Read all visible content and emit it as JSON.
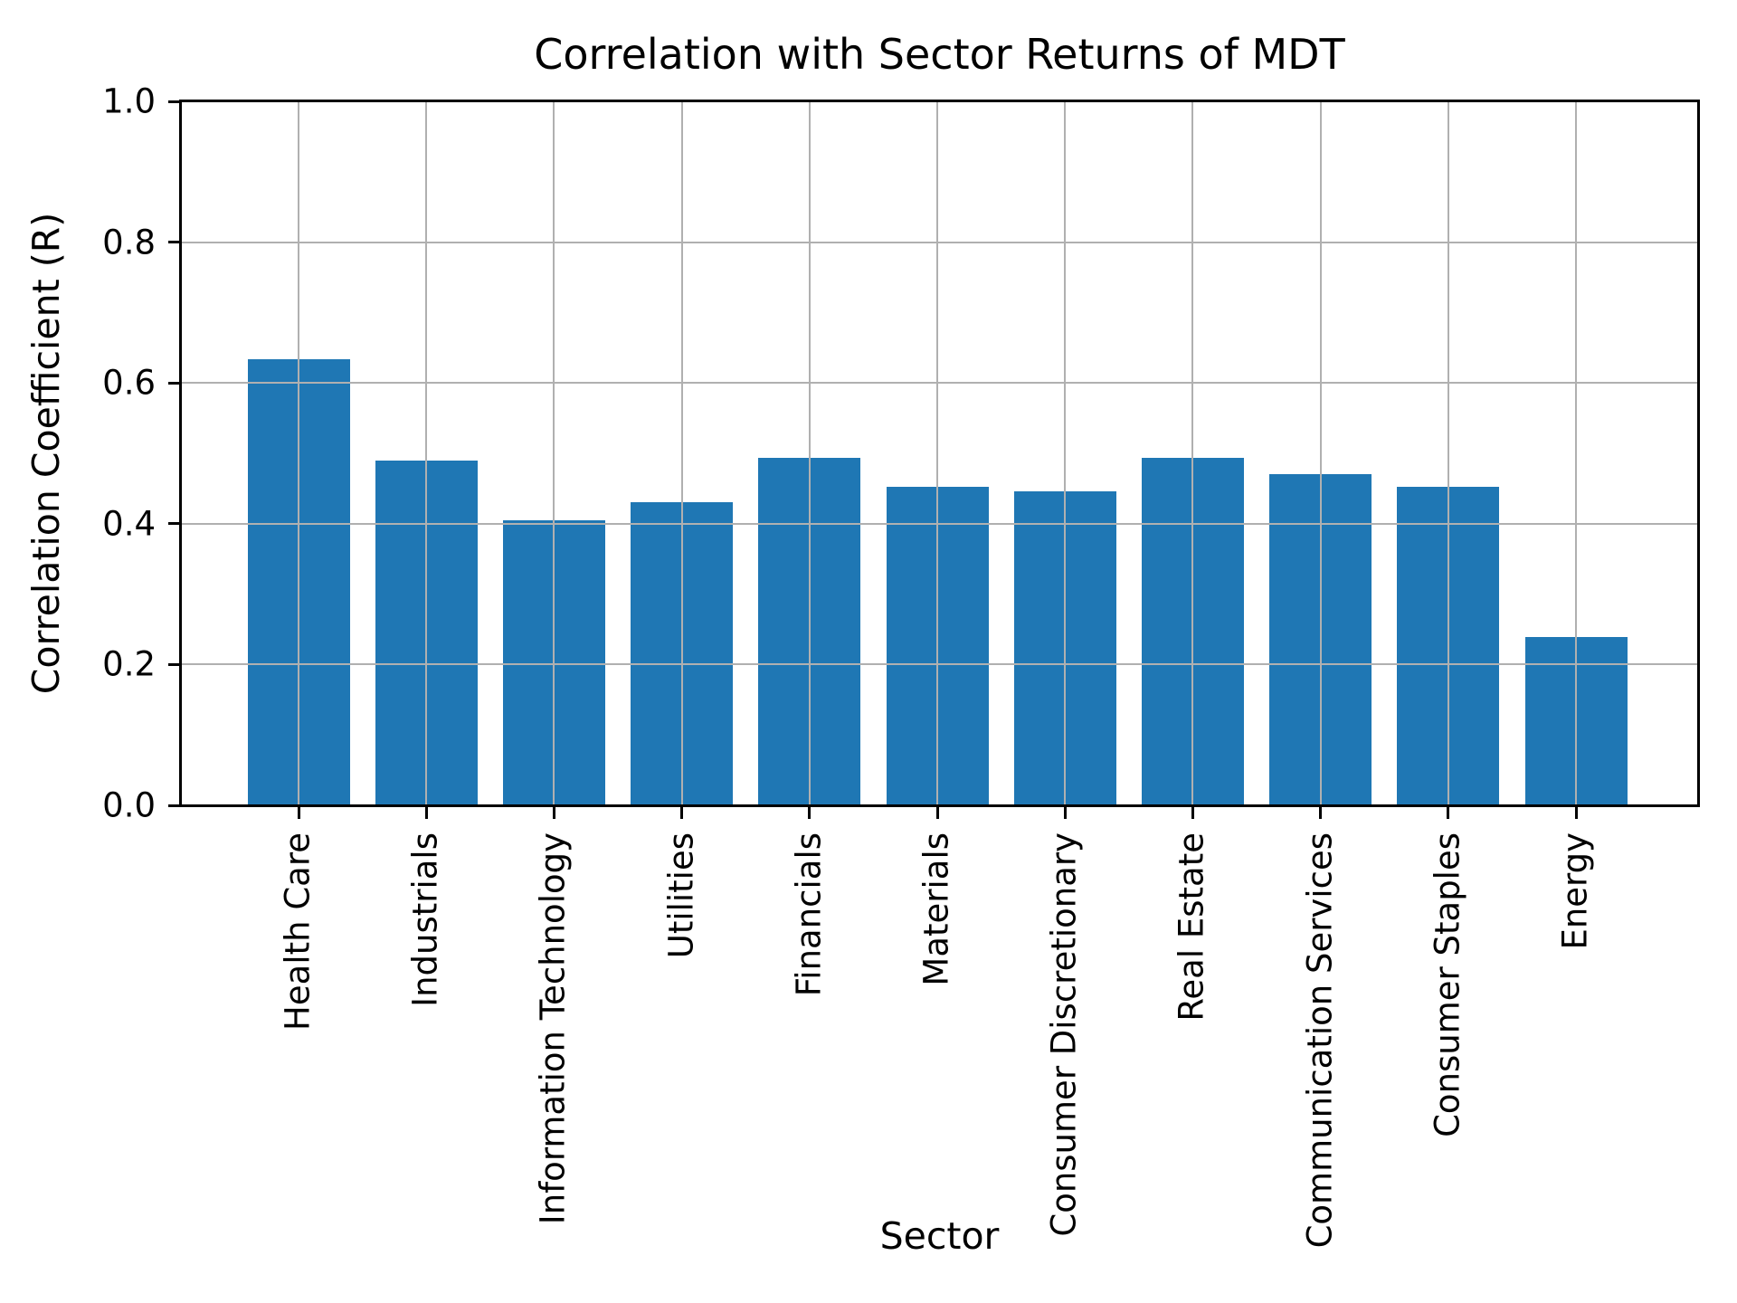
{
  "chart_data": {
    "type": "bar",
    "title": "Correlation with Sector Returns of MDT",
    "xlabel": "Sector",
    "ylabel": "Correlation Coefficient (R)",
    "categories": [
      "Health Care",
      "Industrials",
      "Information Technology",
      "Utilities",
      "Financials",
      "Materials",
      "Consumer Discretionary",
      "Real Estate",
      "Communication Services",
      "Consumer Staples",
      "Energy"
    ],
    "values": [
      0.634,
      0.49,
      0.405,
      0.43,
      0.494,
      0.453,
      0.446,
      0.493,
      0.47,
      0.452,
      0.239
    ],
    "ylim": [
      0.0,
      1.0
    ],
    "yticks": [
      "0.0",
      "0.2",
      "0.4",
      "0.6",
      "0.8",
      "1.0"
    ],
    "grid": true,
    "legend": "none",
    "bar_color": "#1f77b4",
    "grid_color": "#b0b0b0",
    "spine_color": "#000000",
    "text_color": "#000000"
  }
}
